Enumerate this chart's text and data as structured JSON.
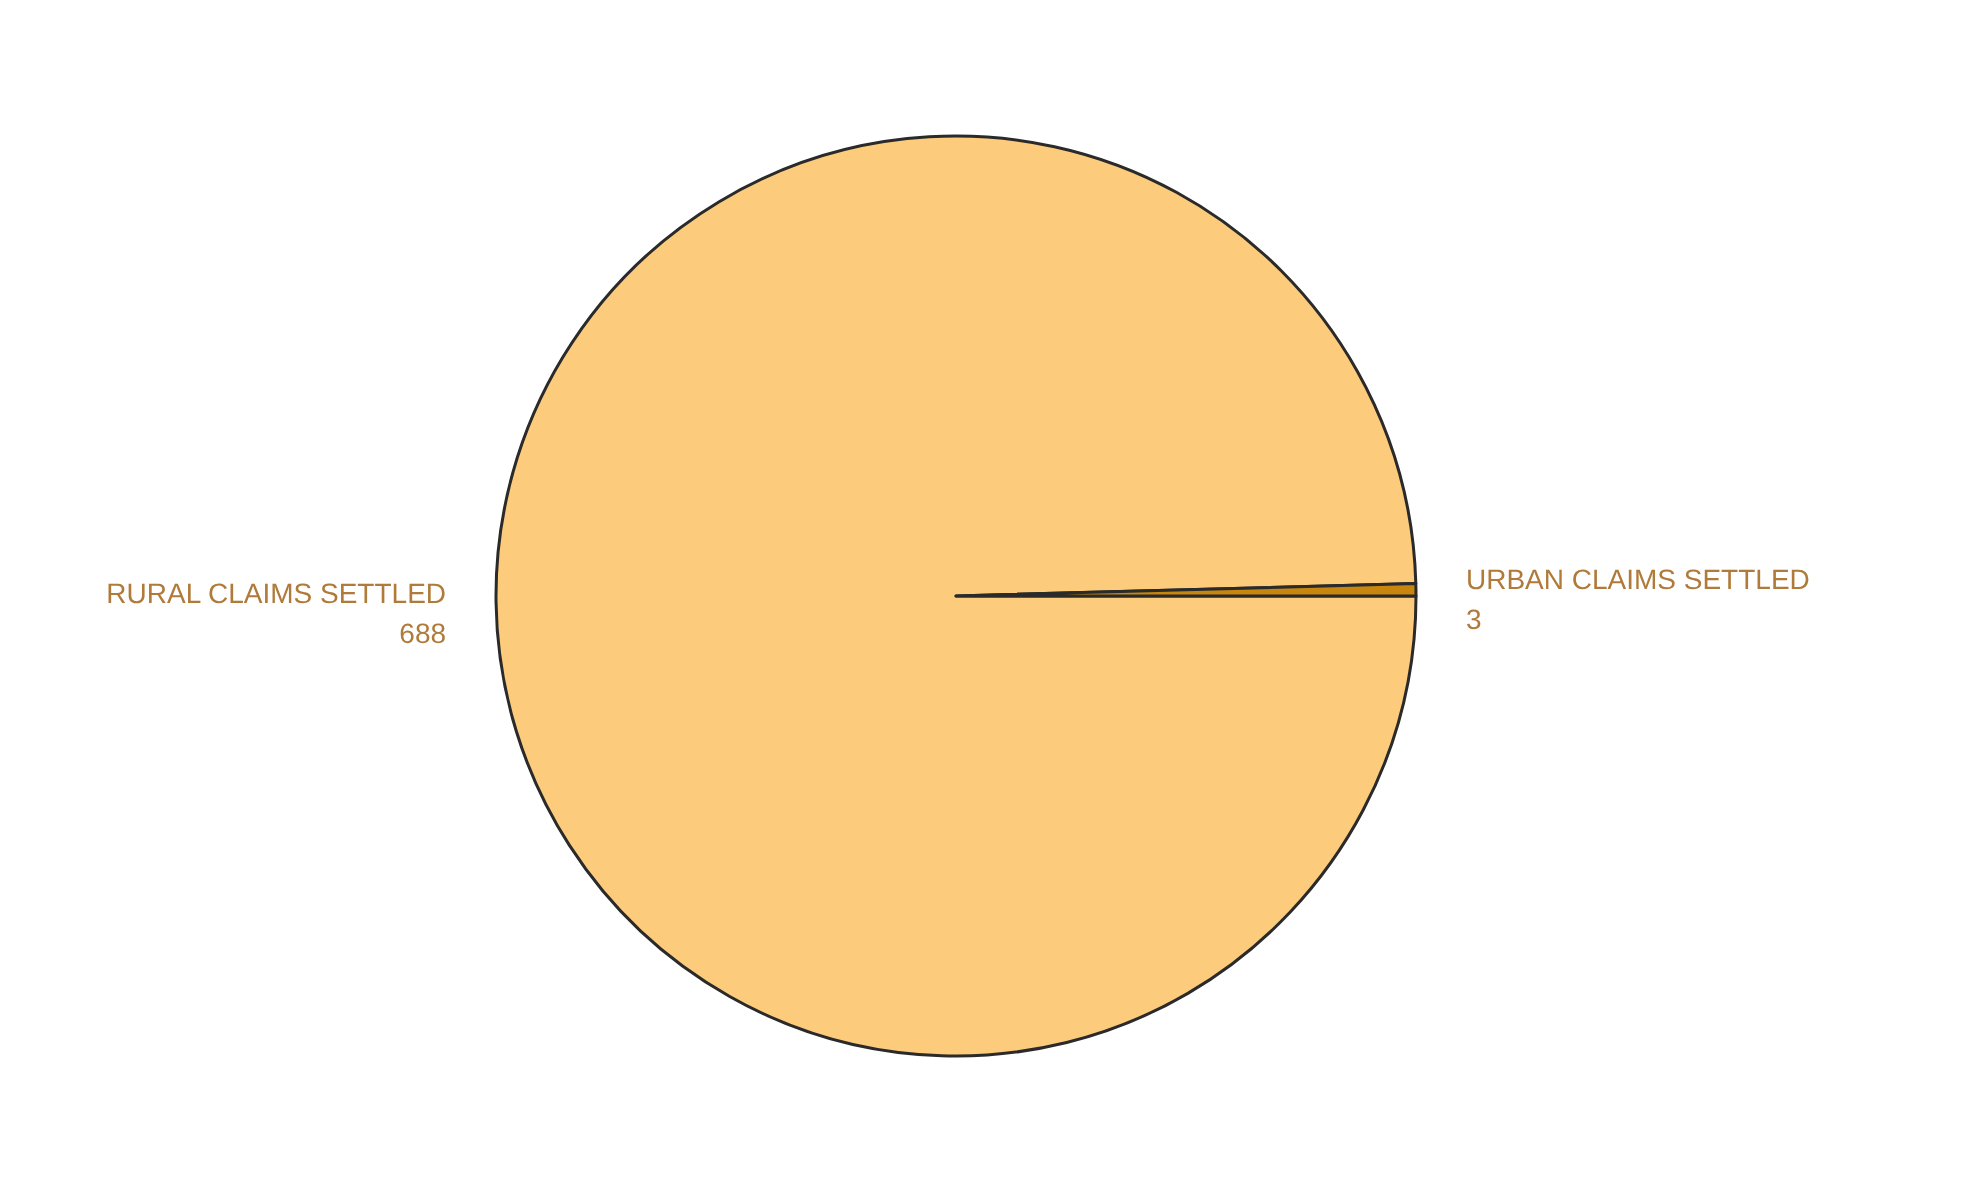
{
  "chart_data": {
    "type": "pie",
    "categories": [
      "RURAL CLAIMS SETTLED",
      "URBAN CLAIMS SETTLED"
    ],
    "values": [
      688,
      3
    ],
    "colors": [
      "#fdcb7c",
      "#c8860f"
    ],
    "data_labels": true
  }
}
